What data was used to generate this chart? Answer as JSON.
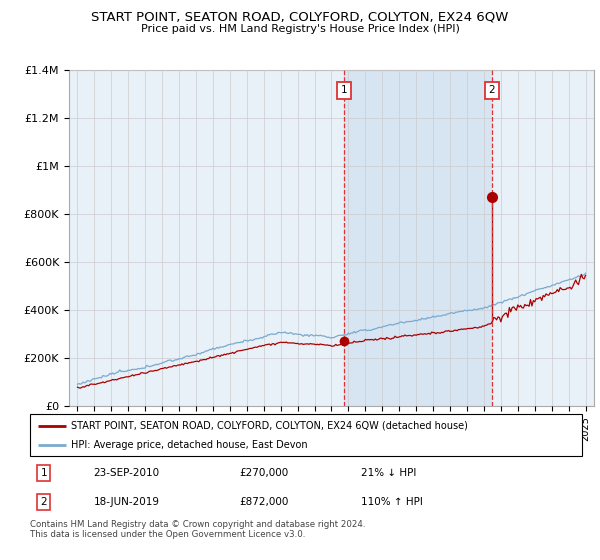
{
  "title": "START POINT, SEATON ROAD, COLYFORD, COLYTON, EX24 6QW",
  "subtitle": "Price paid vs. HM Land Registry's House Price Index (HPI)",
  "legend_label_red": "START POINT, SEATON ROAD, COLYFORD, COLYTON, EX24 6QW (detached house)",
  "legend_label_blue": "HPI: Average price, detached house, East Devon",
  "annotation1_label": "1",
  "annotation1_date": "23-SEP-2010",
  "annotation1_price": "£270,000",
  "annotation1_pct": "21% ↓ HPI",
  "annotation2_label": "2",
  "annotation2_date": "18-JUN-2019",
  "annotation2_price": "£872,000",
  "annotation2_pct": "110% ↑ HPI",
  "footer": "Contains HM Land Registry data © Crown copyright and database right 2024.\nThis data is licensed under the Open Government Licence v3.0.",
  "year_start": 1995,
  "year_end": 2025,
  "ylim_max": 1400000,
  "color_red": "#aa0000",
  "color_blue": "#7aaace",
  "color_grid": "#cccccc",
  "color_vline": "#dd3333",
  "color_bg_chart": "#e8f0f8",
  "color_bg_between": "#dde8f4",
  "sale1_year": 2010.73,
  "sale2_year": 2019.46,
  "sale1_price": 270000,
  "sale2_price": 872000
}
